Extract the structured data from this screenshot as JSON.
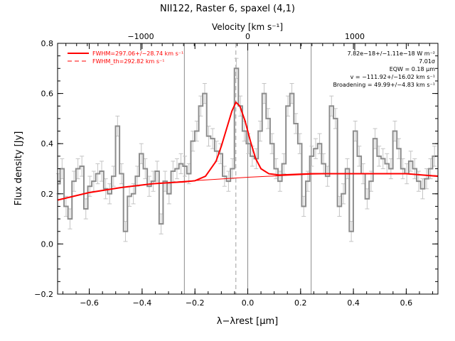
{
  "chart_data": {
    "type": "line",
    "title": "NII122, Raster 6, spaxel (4,1)",
    "xlabel": "λ−λrest [μm]",
    "ylabel": "Flux density [Jy]",
    "top_axis_label": "Velocity [km s⁻¹]",
    "xlim": [
      -0.72,
      0.72
    ],
    "ylim": [
      -0.2,
      0.8
    ],
    "x_ticks": [
      -0.6,
      -0.4,
      -0.2,
      0.0,
      0.2,
      0.4,
      0.6
    ],
    "x_tick_labels": [
      "−0.6",
      "−0.4",
      "−0.2",
      "0.0",
      "0.2",
      "0.4",
      "0.6"
    ],
    "y_ticks": [
      -0.2,
      0.0,
      0.2,
      0.4,
      0.6,
      0.8
    ],
    "y_tick_labels": [
      "−0.2",
      "0.0",
      "0.2",
      "0.4",
      "0.6",
      "0.8"
    ],
    "top_ticks_velocity": [
      -1000,
      0,
      1000
    ],
    "top_tick_labels": [
      "−1000",
      "0",
      "1000"
    ],
    "top_axis_um_per_kms": 0.000405,
    "grid": false,
    "vertical_lines": [
      -0.24,
      0.0,
      0.24
    ],
    "dashed_line_x": -0.045,
    "legend": {
      "placement": "top-left",
      "entries": [
        {
          "text": "FWHM=297.06+/−28.74 km s⁻¹",
          "style": "solid",
          "color": "#ff0000"
        },
        {
          "text": "FWHM_th=292.82 km s⁻¹",
          "style": "dashed",
          "color": "#ff0000"
        }
      ]
    },
    "annotations": [
      "7.82e−18+/−1.11e−18 W m⁻²",
      "7.01σ",
      "EQW = 0.18 μm",
      "v = −111.92+/−16.02 km s⁻¹",
      "Broadening = 49.99+/−4.83 km s⁻¹"
    ],
    "series": [
      {
        "name": "",
        "style": "steps",
        "color": "#8c8c8c",
        "x": [
          -0.718,
          -0.703,
          -0.688,
          -0.673,
          -0.658,
          -0.643,
          -0.628,
          -0.613,
          -0.598,
          -0.583,
          -0.568,
          -0.553,
          -0.538,
          -0.523,
          -0.508,
          -0.493,
          -0.478,
          -0.463,
          -0.448,
          -0.433,
          -0.418,
          -0.403,
          -0.388,
          -0.373,
          -0.358,
          -0.343,
          -0.328,
          -0.313,
          -0.298,
          -0.283,
          -0.268,
          -0.253,
          -0.238,
          -0.223,
          -0.208,
          -0.193,
          -0.178,
          -0.163,
          -0.148,
          -0.133,
          -0.118,
          -0.103,
          -0.088,
          -0.073,
          -0.058,
          -0.043,
          -0.028,
          -0.013,
          0.002,
          0.017,
          0.032,
          0.047,
          0.062,
          0.077,
          0.092,
          0.107,
          0.122,
          0.137,
          0.152,
          0.167,
          0.182,
          0.197,
          0.212,
          0.227,
          0.242,
          0.257,
          0.272,
          0.287,
          0.302,
          0.317,
          0.332,
          0.347,
          0.362,
          0.377,
          0.392,
          0.407,
          0.422,
          0.437,
          0.452,
          0.467,
          0.482,
          0.497,
          0.512,
          0.527,
          0.542,
          0.557,
          0.572,
          0.587,
          0.602,
          0.617,
          0.632,
          0.647,
          0.662,
          0.677,
          0.692,
          0.707
        ],
        "values": [
          0.24,
          0.3,
          0.15,
          0.1,
          0.25,
          0.3,
          0.31,
          0.14,
          0.23,
          0.25,
          0.28,
          0.29,
          0.22,
          0.2,
          0.27,
          0.47,
          0.28,
          0.05,
          0.19,
          0.2,
          0.27,
          0.36,
          0.3,
          0.23,
          0.25,
          0.29,
          0.08,
          0.25,
          0.2,
          0.29,
          0.3,
          0.32,
          0.31,
          0.28,
          0.41,
          0.45,
          0.55,
          0.6,
          0.43,
          0.42,
          0.37,
          0.36,
          0.27,
          0.25,
          0.3,
          0.7,
          0.55,
          0.45,
          0.4,
          0.35,
          0.34,
          0.45,
          0.6,
          0.5,
          0.4,
          0.3,
          0.25,
          0.32,
          0.55,
          0.6,
          0.48,
          0.4,
          0.15,
          0.25,
          0.35,
          0.38,
          0.4,
          0.32,
          0.27,
          0.55,
          0.5,
          0.15,
          0.2,
          0.3,
          0.05,
          0.45,
          0.35,
          0.28,
          0.18,
          0.25,
          0.42,
          0.35,
          0.34,
          0.32,
          0.3,
          0.45,
          0.38,
          0.3,
          0.28,
          0.33,
          0.3,
          0.25,
          0.22,
          0.26,
          0.3,
          0.35
        ],
        "errors": [
          0.04,
          0.04,
          0.04,
          0.04,
          0.04,
          0.04,
          0.04,
          0.04,
          0.04,
          0.04,
          0.04,
          0.04,
          0.04,
          0.04,
          0.04,
          0.04,
          0.04,
          0.04,
          0.04,
          0.04,
          0.04,
          0.04,
          0.04,
          0.04,
          0.04,
          0.04,
          0.04,
          0.04,
          0.04,
          0.04,
          0.04,
          0.04,
          0.04,
          0.04,
          0.04,
          0.04,
          0.04,
          0.04,
          0.04,
          0.04,
          0.04,
          0.04,
          0.04,
          0.04,
          0.04,
          0.04,
          0.04,
          0.04,
          0.04,
          0.04,
          0.04,
          0.04,
          0.04,
          0.04,
          0.04,
          0.04,
          0.04,
          0.04,
          0.04,
          0.04,
          0.04,
          0.04,
          0.04,
          0.04,
          0.04,
          0.04,
          0.04,
          0.04,
          0.04,
          0.04,
          0.04,
          0.04,
          0.04,
          0.04,
          0.04,
          0.04,
          0.04,
          0.04,
          0.04,
          0.04,
          0.04,
          0.04,
          0.04,
          0.04,
          0.04,
          0.04,
          0.04,
          0.04,
          0.04,
          0.04,
          0.04,
          0.04,
          0.04,
          0.04,
          0.04,
          0.04
        ]
      },
      {
        "name": "",
        "style": "line",
        "color": "#ff0000",
        "x": [
          -0.72,
          -0.6,
          -0.48,
          -0.36,
          -0.24,
          -0.2,
          -0.16,
          -0.12,
          -0.1,
          -0.08,
          -0.06,
          -0.045,
          -0.03,
          -0.01,
          0.01,
          0.03,
          0.05,
          0.08,
          0.12,
          0.24,
          0.36,
          0.48,
          0.6,
          0.72
        ],
        "values": [
          0.175,
          0.205,
          0.225,
          0.24,
          0.248,
          0.252,
          0.27,
          0.33,
          0.39,
          0.46,
          0.53,
          0.565,
          0.55,
          0.49,
          0.41,
          0.34,
          0.3,
          0.28,
          0.275,
          0.28,
          0.28,
          0.28,
          0.28,
          0.27
        ]
      },
      {
        "name": "",
        "style": "line-thin",
        "color": "#ff0000",
        "x": [
          -0.72,
          -0.6,
          -0.48,
          -0.36,
          -0.24,
          -0.12,
          0.0,
          0.12,
          0.24,
          0.36,
          0.48,
          0.6,
          0.72
        ],
        "values": [
          0.175,
          0.205,
          0.225,
          0.24,
          0.25,
          0.258,
          0.266,
          0.272,
          0.278,
          0.28,
          0.28,
          0.279,
          0.272
        ]
      }
    ]
  }
}
